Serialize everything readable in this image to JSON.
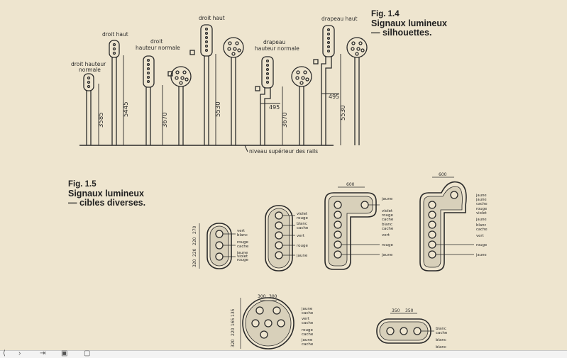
{
  "fig14": {
    "number": "Fig. 1.4",
    "line1": "Signaux lumineux",
    "line2": "— silhouettes."
  },
  "fig15": {
    "number": "Fig. 1.5",
    "line1": "Signaux lumineux",
    "line2": "— cibles diverses."
  },
  "silhouettes": {
    "labels": {
      "dhn_left": [
        "droit hauteur",
        "normale"
      ],
      "droit_haut_1": "droit haut",
      "droit_hn": [
        "droit",
        "hauteur normale"
      ],
      "droit_haut_2": "droit haut",
      "drapeau_hn": [
        "drapeau",
        "hauteur normale"
      ],
      "drapeau_haut": "drapeau haut"
    },
    "dimensions": {
      "d1": "3585",
      "d2": "5445",
      "d3": "3670",
      "d4": "5530",
      "d5": "495",
      "d6": "3670",
      "d7": "495",
      "d8": "5530"
    },
    "rail_label": "niveau supérieur des rails"
  },
  "targets": {
    "t1": {
      "lights": [
        "vert",
        "blanc",
        "rouge",
        "cache",
        "jaune",
        "violet",
        "rouge"
      ],
      "dims": [
        "320",
        "220",
        "220",
        "270"
      ]
    },
    "t2": {
      "lights": [
        "violet",
        "rouge",
        "blanc",
        "cache",
        "vert",
        "rouge",
        "jaune"
      ]
    },
    "t3": {
      "width": "600",
      "lights": [
        "jaune",
        "violet",
        "rouge",
        "cache",
        "blanc",
        "cache",
        "vert",
        "rouge",
        "jaune"
      ]
    },
    "t4": {
      "width": "600",
      "lights": [
        "jaune",
        "jaune",
        "cache",
        "rouge",
        "violet",
        "jaune",
        "blanc",
        "cache",
        "vert",
        "rouge",
        "jaune"
      ]
    },
    "t5": {
      "dims_top": [
        "300",
        "300"
      ],
      "dims_side": [
        "320",
        "220",
        "165",
        "135"
      ],
      "lights": [
        "jaune",
        "cache",
        "vert",
        "cache",
        "rouge",
        "cache",
        "jaune",
        "cache"
      ]
    },
    "t6": {
      "dims_top": [
        "350",
        "350"
      ],
      "lights": [
        "blanc",
        "cache",
        "blanc",
        "blanc"
      ]
    }
  },
  "toolbar": {
    "icons": [
      "first-page-icon",
      "next-page-icon",
      "last-page-icon",
      "fit-page-icon",
      "fullscreen-icon"
    ]
  }
}
